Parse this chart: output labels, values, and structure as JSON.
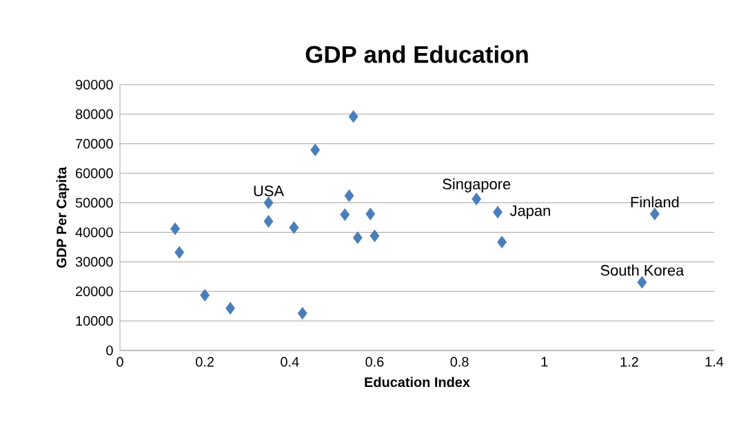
{
  "chart_data": {
    "type": "scatter",
    "title": "GDP and Education",
    "xlabel": "Education Index",
    "ylabel": "GDP Per Capita",
    "x": [
      0.13,
      0.14,
      0.2,
      0.26,
      0.35,
      0.35,
      0.41,
      0.43,
      0.46,
      0.55,
      0.54,
      0.53,
      0.59,
      0.56,
      0.6,
      0.84,
      0.89,
      0.9,
      1.26,
      1.23
    ],
    "values": [
      41200,
      33200,
      18700,
      14300,
      50000,
      43700,
      41600,
      12600,
      67900,
      79200,
      52400,
      46000,
      46200,
      38200,
      38800,
      51300,
      46800,
      36700,
      46200,
      23100
    ],
    "color": "#4a7ebb",
    "marker": "diamond",
    "grid": "y",
    "xlim": [
      0,
      1.4
    ],
    "xticks": [
      0,
      0.2,
      0.4,
      0.6,
      0.8,
      1,
      1.2,
      1.4
    ],
    "ylim": [
      0,
      90000
    ],
    "yticks": [
      0,
      10000,
      20000,
      30000,
      40000,
      50000,
      60000,
      70000,
      80000,
      90000
    ],
    "annotations": [
      {
        "text": "USA",
        "x": 0.35,
        "y": 50000
      },
      {
        "text": "Singapore",
        "x": 0.84,
        "y": 51300
      },
      {
        "text": "Japan",
        "x": 0.89,
        "y": 46800
      },
      {
        "text": "Finland",
        "x": 1.26,
        "y": 46200
      },
      {
        "text": "South Korea",
        "x": 1.23,
        "y": 23100
      }
    ]
  }
}
